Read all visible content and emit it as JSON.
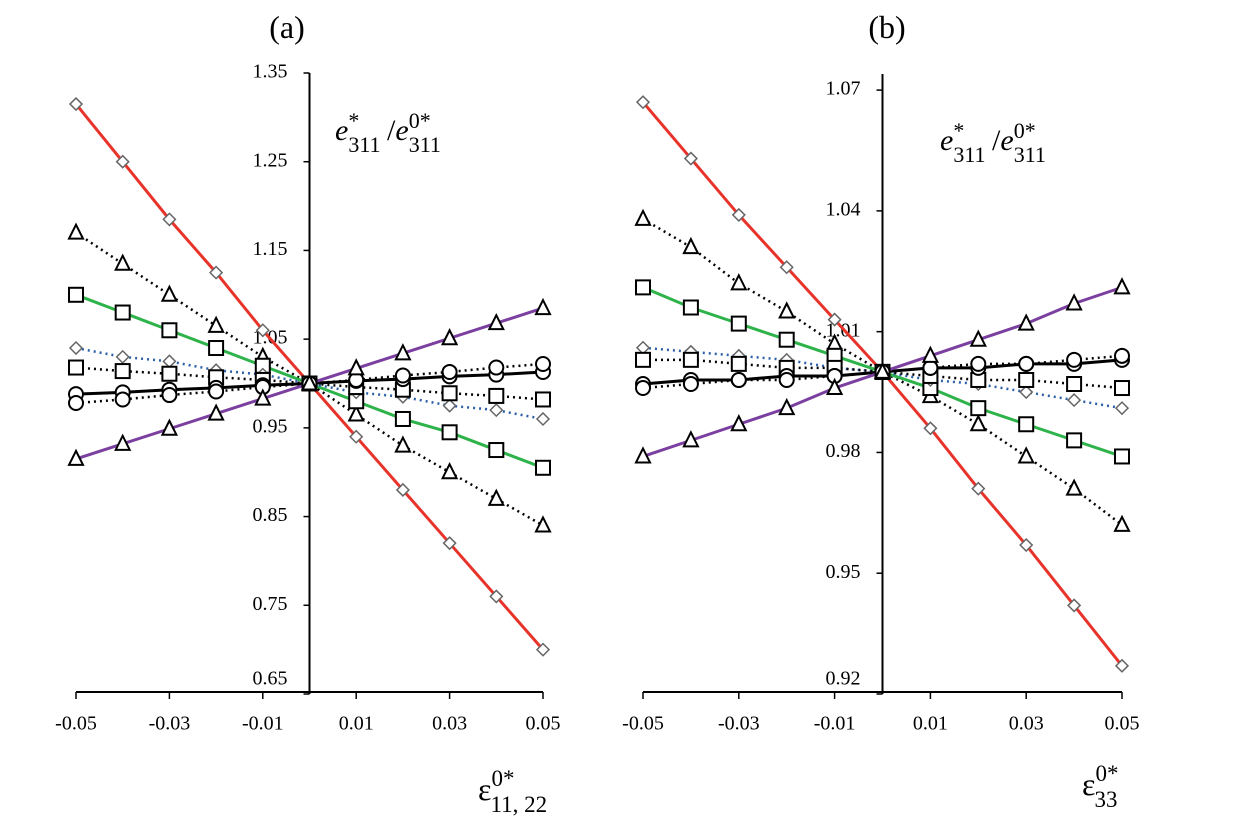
{
  "chart_data": [
    {
      "type": "line",
      "title": "(a)",
      "y_label": {
        "numerator": {
          "base": "e",
          "sup": "*",
          "sub": "311"
        },
        "separator": "/",
        "denominator": {
          "base": "e",
          "sup": "0*",
          "sub": "311"
        }
      },
      "x_label": {
        "base": "ε",
        "sup": "0*",
        "sub": "11, 22"
      },
      "x": [
        -0.05,
        -0.04,
        -0.03,
        -0.02,
        -0.01,
        0,
        0.01,
        0.02,
        0.03,
        0.04,
        0.05
      ],
      "xlim": [
        -0.05,
        0.05
      ],
      "xticks": [
        -0.05,
        -0.03,
        -0.01,
        0.01,
        0.03,
        0.05
      ],
      "ylim": [
        0.65,
        1.35
      ],
      "yticks": [
        1.35,
        1.25,
        1.15,
        1.05,
        0.95,
        0.85,
        0.75,
        0.65
      ],
      "series": [
        {
          "color": "#e8332a",
          "marker": "diamond",
          "dash": false,
          "values": [
            1.315,
            1.25,
            1.185,
            1.125,
            1.06,
            1.0,
            0.94,
            0.88,
            0.82,
            0.76,
            0.7
          ]
        },
        {
          "color": "#000000",
          "marker": "triangle",
          "dash": true,
          "values": [
            1.17,
            1.135,
            1.1,
            1.065,
            1.03,
            1.0,
            0.965,
            0.93,
            0.9,
            0.87,
            0.84
          ]
        },
        {
          "color": "#2db34a",
          "marker": "square",
          "dash": false,
          "values": [
            1.1,
            1.08,
            1.06,
            1.04,
            1.02,
            1.0,
            0.98,
            0.96,
            0.945,
            0.925,
            0.905
          ]
        },
        {
          "color": "#2b5fa8",
          "marker": "diamond",
          "dash": true,
          "values": [
            1.04,
            1.03,
            1.025,
            1.015,
            1.01,
            1.0,
            0.99,
            0.985,
            0.975,
            0.97,
            0.96
          ]
        },
        {
          "color": "#000000",
          "marker": "square",
          "dash": true,
          "values": [
            1.018,
            1.014,
            1.011,
            1.007,
            1.004,
            1.0,
            0.996,
            0.993,
            0.989,
            0.986,
            0.982
          ]
        },
        {
          "color": "#000000",
          "marker": "circle",
          "dash": false,
          "values": [
            0.988,
            0.99,
            0.993,
            0.995,
            0.998,
            1.0,
            1.003,
            1.005,
            1.008,
            1.01,
            1.013
          ]
        },
        {
          "color": "#000000",
          "marker": "circle",
          "dash": true,
          "values": [
            0.978,
            0.982,
            0.987,
            0.991,
            0.996,
            1.0,
            1.004,
            1.009,
            1.013,
            1.018,
            1.022
          ]
        },
        {
          "color": "#7b3fa0",
          "marker": "triangle",
          "dash": false,
          "values": [
            0.915,
            0.932,
            0.949,
            0.966,
            0.983,
            1.0,
            1.017,
            1.034,
            1.051,
            1.068,
            1.085
          ]
        }
      ]
    },
    {
      "type": "line",
      "title": "(b)",
      "y_label": {
        "numerator": {
          "base": "e",
          "sup": "*",
          "sub": "311"
        },
        "separator": "/",
        "denominator": {
          "base": "e",
          "sup": "0*",
          "sub": "311"
        }
      },
      "x_label": {
        "base": "ε",
        "sup": "0*",
        "sub": "33"
      },
      "x": [
        -0.05,
        -0.04,
        -0.03,
        -0.02,
        -0.01,
        0,
        0.01,
        0.02,
        0.03,
        0.04,
        0.05
      ],
      "xlim": [
        -0.05,
        0.05
      ],
      "xticks": [
        -0.05,
        -0.03,
        -0.01,
        0.01,
        0.03,
        0.05
      ],
      "ylim": [
        0.92,
        1.074
      ],
      "yticks": [
        1.07,
        1.04,
        1.01,
        0.98,
        0.95,
        0.92
      ],
      "series": [
        {
          "color": "#e8332a",
          "marker": "diamond",
          "dash": false,
          "values": [
            1.067,
            1.053,
            1.039,
            1.026,
            1.013,
            1.0,
            0.986,
            0.971,
            0.957,
            0.942,
            0.927
          ]
        },
        {
          "color": "#000000",
          "marker": "triangle",
          "dash": true,
          "values": [
            1.038,
            1.031,
            1.022,
            1.015,
            1.007,
            1.0,
            0.994,
            0.987,
            0.979,
            0.971,
            0.962
          ]
        },
        {
          "color": "#2db34a",
          "marker": "square",
          "dash": false,
          "values": [
            1.021,
            1.016,
            1.012,
            1.008,
            1.004,
            1.0,
            0.996,
            0.991,
            0.987,
            0.983,
            0.979
          ]
        },
        {
          "color": "#2b5fa8",
          "marker": "diamond",
          "dash": true,
          "values": [
            1.006,
            1.005,
            1.004,
            1.003,
            1.001,
            1.0,
            0.998,
            0.997,
            0.995,
            0.993,
            0.991
          ]
        },
        {
          "color": "#000000",
          "marker": "square",
          "dash": true,
          "values": [
            1.003,
            1.003,
            1.002,
            1.001,
            1.001,
            1.0,
            0.999,
            0.998,
            0.998,
            0.997,
            0.996
          ]
        },
        {
          "color": "#000000",
          "marker": "circle",
          "dash": false,
          "values": [
            0.997,
            0.998,
            0.998,
            0.999,
            0.999,
            1.0,
            1.001,
            1.001,
            1.002,
            1.002,
            1.003
          ]
        },
        {
          "color": "#000000",
          "marker": "circle",
          "dash": true,
          "values": [
            0.996,
            0.997,
            0.998,
            0.998,
            0.999,
            1.0,
            1.001,
            1.002,
            1.002,
            1.003,
            1.004
          ]
        },
        {
          "color": "#7b3fa0",
          "marker": "triangle",
          "dash": false,
          "values": [
            0.979,
            0.983,
            0.987,
            0.991,
            0.996,
            1.0,
            1.004,
            1.008,
            1.012,
            1.017,
            1.021
          ]
        }
      ]
    }
  ]
}
